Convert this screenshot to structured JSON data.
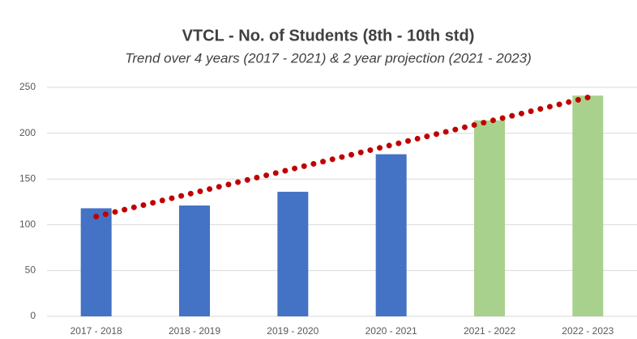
{
  "chart_data": {
    "type": "bar",
    "title": "VTCL - No. of Students (8th - 10th std)",
    "subtitle": "Trend over 4 years (2017 - 2021) & 2 year projection (2021 - 2023)",
    "categories": [
      "2017 - 2018",
      "2018 - 2019",
      "2019 - 2020",
      "2020 - 2021",
      "2021 - 2022",
      "2022 - 2023"
    ],
    "values": [
      118,
      121,
      136,
      177,
      214,
      241
    ],
    "colors": [
      "#4472c4",
      "#4472c4",
      "#4472c4",
      "#4472c4",
      "#a9d18e",
      "#a9d18e"
    ],
    "trend": {
      "color": "#c00000",
      "values": [
        109,
        135,
        161,
        187,
        213,
        239
      ]
    },
    "ylim": [
      0,
      250
    ],
    "yticks": [
      0,
      50,
      100,
      150,
      200,
      250
    ],
    "grid": true
  }
}
